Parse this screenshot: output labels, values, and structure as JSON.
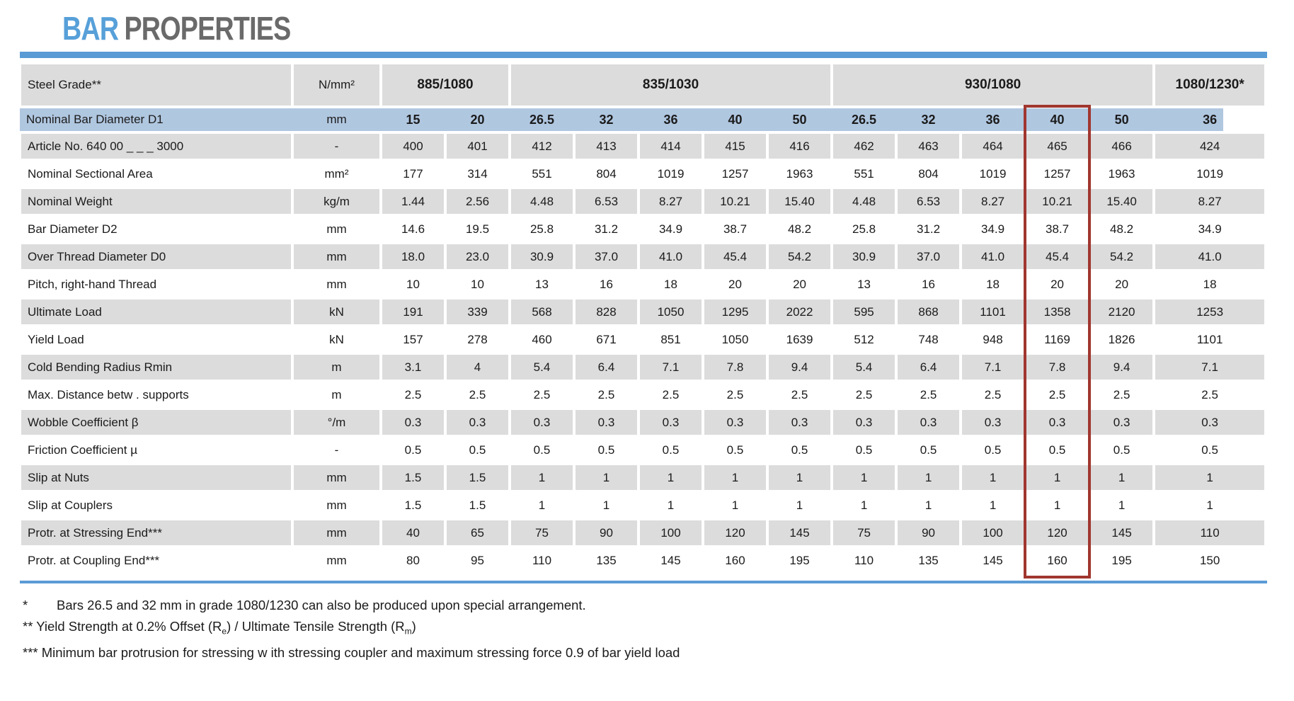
{
  "title": {
    "word1": "BAR",
    "word2": "PROPERTIES"
  },
  "colors": {
    "accent_blue": "#5b9bd5",
    "title_blue": "#57a0d9",
    "title_gray": "#6a6a6a",
    "row_blue": "#b0c7e0",
    "cell_gray": "#dcdcdc",
    "hl_red": "#a0362f"
  },
  "table": {
    "corner_label": "Steel Grade**",
    "unit_header": "N/mm²",
    "col_groups": [
      {
        "label": "885/1080",
        "span": 2
      },
      {
        "label": "835/1030",
        "span": 5
      },
      {
        "label": "930/1080",
        "span": 5
      },
      {
        "label": "1080/1230*",
        "span": 1
      }
    ],
    "diameter_row": {
      "label": "Nominal Bar Diameter D1",
      "unit": "mm",
      "values": [
        "15",
        "20",
        "26.5",
        "32",
        "36",
        "40",
        "50",
        "26.5",
        "32",
        "36",
        "40",
        "50",
        "36"
      ]
    },
    "highlight_column_index": 10,
    "rows": [
      {
        "label": "Article No. 640 00 _ _ _ 3000",
        "unit": "-",
        "values": [
          "400",
          "401",
          "412",
          "413",
          "414",
          "415",
          "416",
          "462",
          "463",
          "464",
          "465",
          "466",
          "424"
        ]
      },
      {
        "label": "Nominal Sectional Area",
        "unit": "mm²",
        "values": [
          "177",
          "314",
          "551",
          "804",
          "1019",
          "1257",
          "1963",
          "551",
          "804",
          "1019",
          "1257",
          "1963",
          "1019"
        ]
      },
      {
        "label": "Nominal Weight",
        "unit": "kg/m",
        "values": [
          "1.44",
          "2.56",
          "4.48",
          "6.53",
          "8.27",
          "10.21",
          "15.40",
          "4.48",
          "6.53",
          "8.27",
          "10.21",
          "15.40",
          "8.27"
        ]
      },
      {
        "label": "Bar Diameter D2",
        "unit": "mm",
        "values": [
          "14.6",
          "19.5",
          "25.8",
          "31.2",
          "34.9",
          "38.7",
          "48.2",
          "25.8",
          "31.2",
          "34.9",
          "38.7",
          "48.2",
          "34.9"
        ]
      },
      {
        "label": "Over Thread Diameter D0",
        "unit": "mm",
        "values": [
          "18.0",
          "23.0",
          "30.9",
          "37.0",
          "41.0",
          "45.4",
          "54.2",
          "30.9",
          "37.0",
          "41.0",
          "45.4",
          "54.2",
          "41.0"
        ]
      },
      {
        "label": "Pitch, right-hand Thread",
        "unit": "mm",
        "values": [
          "10",
          "10",
          "13",
          "16",
          "18",
          "20",
          "20",
          "13",
          "16",
          "18",
          "20",
          "20",
          "18"
        ]
      },
      {
        "label": "Ultimate Load",
        "unit": "kN",
        "values": [
          "191",
          "339",
          "568",
          "828",
          "1050",
          "1295",
          "2022",
          "595",
          "868",
          "1101",
          "1358",
          "2120",
          "1253"
        ]
      },
      {
        "label": "Yield Load",
        "unit": "kN",
        "values": [
          "157",
          "278",
          "460",
          "671",
          "851",
          "1050",
          "1639",
          "512",
          "748",
          "948",
          "1169",
          "1826",
          "1101"
        ]
      },
      {
        "label": "Cold Bending Radius Rmin",
        "unit": "m",
        "values": [
          "3.1",
          "4",
          "5.4",
          "6.4",
          "7.1",
          "7.8",
          "9.4",
          "5.4",
          "6.4",
          "7.1",
          "7.8",
          "9.4",
          "7.1"
        ]
      },
      {
        "label": "Max. Distance betw . supports",
        "unit": "m",
        "values": [
          "2.5",
          "2.5",
          "2.5",
          "2.5",
          "2.5",
          "2.5",
          "2.5",
          "2.5",
          "2.5",
          "2.5",
          "2.5",
          "2.5",
          "2.5"
        ]
      },
      {
        "label": "Wobble Coefficient β",
        "unit": "°/m",
        "values": [
          "0.3",
          "0.3",
          "0.3",
          "0.3",
          "0.3",
          "0.3",
          "0.3",
          "0.3",
          "0.3",
          "0.3",
          "0.3",
          "0.3",
          "0.3"
        ]
      },
      {
        "label": "Friction Coefficient µ",
        "unit": "-",
        "values": [
          "0.5",
          "0.5",
          "0.5",
          "0.5",
          "0.5",
          "0.5",
          "0.5",
          "0.5",
          "0.5",
          "0.5",
          "0.5",
          "0.5",
          "0.5"
        ]
      },
      {
        "label": "Slip at Nuts",
        "unit": "mm",
        "values": [
          "1.5",
          "1.5",
          "1",
          "1",
          "1",
          "1",
          "1",
          "1",
          "1",
          "1",
          "1",
          "1",
          "1"
        ]
      },
      {
        "label": "Slip at Couplers",
        "unit": "mm",
        "values": [
          "1.5",
          "1.5",
          "1",
          "1",
          "1",
          "1",
          "1",
          "1",
          "1",
          "1",
          "1",
          "1",
          "1"
        ]
      },
      {
        "label": "Protr. at Stressing End***",
        "unit": "mm",
        "values": [
          "40",
          "65",
          "75",
          "90",
          "100",
          "120",
          "145",
          "75",
          "90",
          "100",
          "120",
          "145",
          "110"
        ]
      },
      {
        "label": "Protr. at Coupling End***",
        "unit": "mm",
        "values": [
          "80",
          "95",
          "110",
          "135",
          "145",
          "160",
          "195",
          "110",
          "135",
          "145",
          "160",
          "195",
          "150"
        ]
      }
    ]
  },
  "footnotes": {
    "f1_marker": "*",
    "f1_text": "Bars 26.5 and 32 mm in grade 1080/1230 can also be produced upon special arrangement.",
    "f2_pre": "** Yield Strength at 0.2% Offset (R",
    "f2_sub1": "e",
    "f2_mid": ") / Ultimate Tensile Strength (R",
    "f2_sub2": "m",
    "f2_post": ")",
    "f3_text": "*** Minimum bar protrusion for stressing w ith stressing coupler and maximum stressing force 0.9 of bar yield load"
  }
}
